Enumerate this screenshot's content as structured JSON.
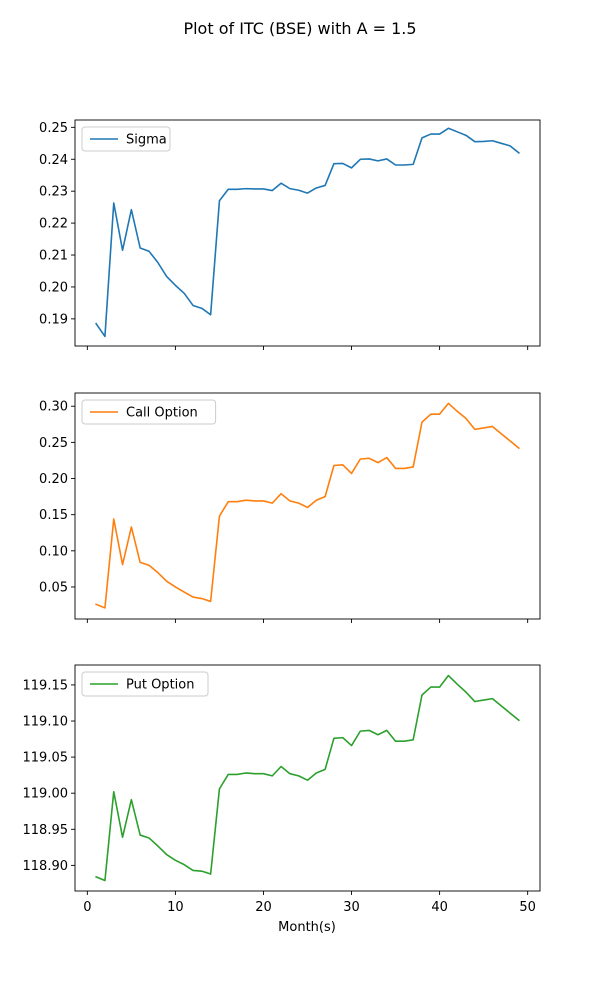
{
  "chart_data": {
    "type": "line",
    "title": "Plot of ITC (BSE) with A = 1.5",
    "xlabel": "Month(s)",
    "xlim": [
      -1.4,
      51.4
    ],
    "xticks": [
      "0",
      "10",
      "20",
      "30",
      "40",
      "50"
    ],
    "x": [
      1,
      2,
      3,
      4,
      5,
      6,
      7,
      8,
      9,
      10,
      11,
      12,
      13,
      14,
      15,
      16,
      17,
      18,
      19,
      20,
      21,
      22,
      23,
      24,
      25,
      26,
      27,
      28,
      29,
      30,
      31,
      32,
      33,
      34,
      35,
      36,
      37,
      38,
      39,
      40,
      41,
      42,
      43,
      44,
      45,
      46,
      47,
      48,
      49
    ],
    "grid": false,
    "legend_position": "upper left",
    "panels": [
      {
        "series_name": "Sigma",
        "color": "#1f77b4",
        "ylim": [
          0.1815,
          0.2523
        ],
        "yticks": [
          "0.19",
          "0.20",
          "0.21",
          "0.22",
          "0.23",
          "0.24",
          "0.25"
        ],
        "values": [
          0.1885,
          0.1845,
          0.2263,
          0.2115,
          0.2242,
          0.2122,
          0.2112,
          0.2077,
          0.2033,
          0.2005,
          0.198,
          0.1942,
          0.1933,
          0.1913,
          0.227,
          0.2306,
          0.2306,
          0.2308,
          0.2307,
          0.2307,
          0.2302,
          0.2325,
          0.2308,
          0.2303,
          0.2294,
          0.231,
          0.2318,
          0.2386,
          0.2387,
          0.2373,
          0.24,
          0.2401,
          0.2395,
          0.2401,
          0.2382,
          0.2382,
          0.2384,
          0.2467,
          0.2479,
          0.2479,
          0.2497,
          0.2486,
          0.2475,
          0.2455,
          0.2456,
          0.2458,
          0.245,
          0.2442,
          0.242
        ]
      },
      {
        "series_name": "Call Option",
        "color": "#ff7f0e",
        "ylim": [
          0.0057,
          0.3183
        ],
        "yticks": [
          "0.05",
          "0.10",
          "0.15",
          "0.20",
          "0.25",
          "0.30"
        ],
        "values": [
          0.026,
          0.021,
          0.144,
          0.081,
          0.133,
          0.084,
          0.08,
          0.07,
          0.058,
          0.05,
          0.043,
          0.036,
          0.034,
          0.03,
          0.148,
          0.168,
          0.168,
          0.17,
          0.169,
          0.169,
          0.166,
          0.179,
          0.169,
          0.166,
          0.16,
          0.17,
          0.175,
          0.218,
          0.219,
          0.207,
          0.227,
          0.228,
          0.222,
          0.229,
          0.214,
          0.214,
          0.216,
          0.278,
          0.289,
          0.289,
          0.304,
          0.293,
          0.283,
          0.268,
          0.27,
          0.272,
          0.262,
          0.252,
          0.242
        ]
      },
      {
        "series_name": "Put Option",
        "color": "#2ca02c",
        "ylim": [
          118.8645,
          119.1776
        ],
        "yticks": [
          "118.90",
          "118.95",
          "119.00",
          "119.05",
          "119.10",
          "119.15"
        ],
        "values": [
          118.884,
          118.879,
          119.002,
          118.939,
          118.991,
          118.942,
          118.938,
          118.927,
          118.915,
          118.907,
          118.901,
          118.893,
          118.892,
          118.888,
          119.006,
          119.026,
          119.026,
          119.028,
          119.027,
          119.027,
          119.024,
          119.037,
          119.027,
          119.024,
          119.018,
          119.028,
          119.033,
          119.076,
          119.077,
          119.066,
          119.086,
          119.087,
          119.081,
          119.087,
          119.072,
          119.072,
          119.074,
          119.136,
          119.147,
          119.147,
          119.163,
          119.151,
          119.14,
          119.127,
          119.129,
          119.131,
          119.121,
          119.111,
          119.101
        ]
      }
    ]
  }
}
